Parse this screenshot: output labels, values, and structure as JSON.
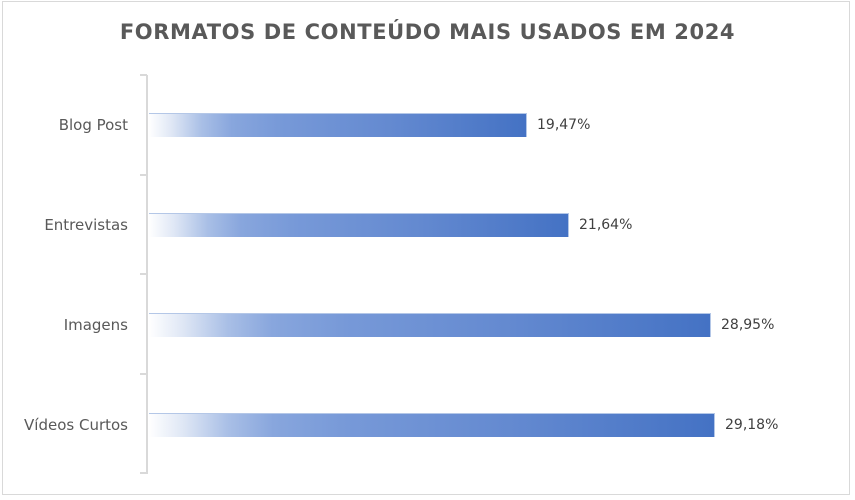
{
  "chart_data": {
    "type": "bar",
    "orientation": "horizontal",
    "title": "FORMATOS DE CONTEÚDO MAIS USADOS EM 2024",
    "categories": [
      "Blog Post",
      "Entrevistas",
      "Imagens",
      "Vídeos Curtos"
    ],
    "values": [
      19.47,
      21.64,
      28.95,
      29.18
    ],
    "value_labels": [
      "19,47%",
      "21,64%",
      "28,95%",
      "29,18%"
    ],
    "xlabel": "",
    "ylabel": "",
    "grid": false,
    "legend": null,
    "bar_color": "#4472C4",
    "bar_fill": "gradient white-to-blue"
  },
  "title": "FORMATOS DE CONTEÚDO MAIS USADOS EM 2024",
  "bars": [
    {
      "label": "Blog Post",
      "value": 19.47,
      "display": "19,47%"
    },
    {
      "label": "Entrevistas",
      "value": 21.64,
      "display": "21,64%"
    },
    {
      "label": "Imagens",
      "value": 28.95,
      "display": "28,95%"
    },
    {
      "label": "Vídeos Curtos",
      "value": 29.18,
      "display": "29,18%"
    }
  ],
  "colors": {
    "bar_end": "#4472C4",
    "text": "#595959",
    "axis": "#D9D9D9",
    "border": "#D9D9D9"
  }
}
